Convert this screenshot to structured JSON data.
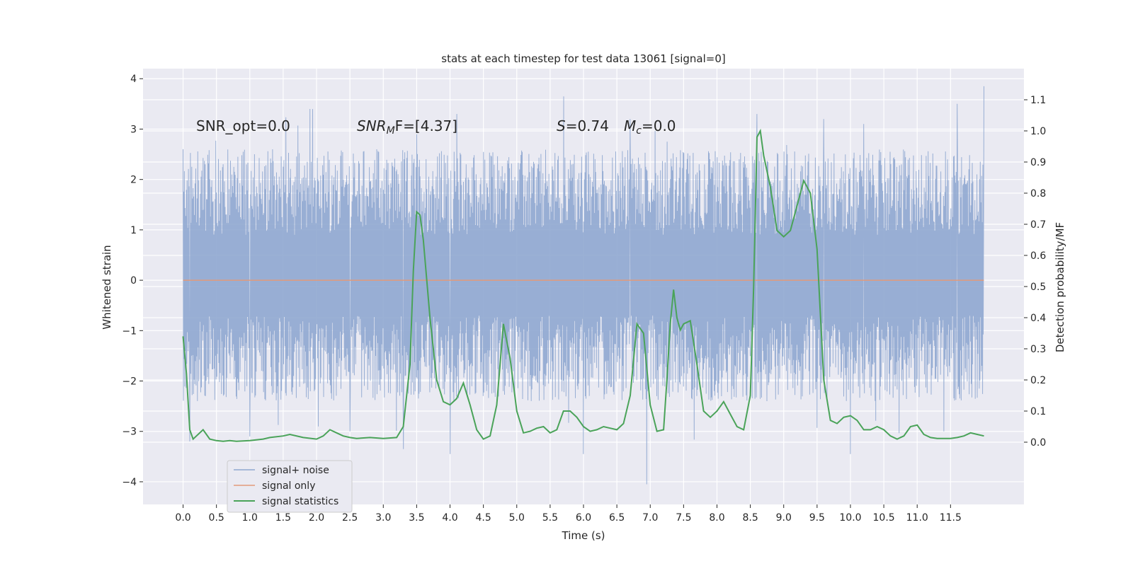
{
  "chart_data": {
    "type": "line",
    "title": "stats at each timestep for test data 13061 [signal=0]",
    "xlabel": "Time (s)",
    "ylabel": "Whitened strain",
    "y2label": "Detection probability/MF",
    "xlim": [
      -0.6,
      12.6
    ],
    "ylim": [
      -4.45,
      4.2
    ],
    "y2lim": [
      -0.2,
      1.2
    ],
    "x_ticks": [
      0.0,
      0.5,
      1.0,
      1.5,
      2.0,
      2.5,
      3.0,
      3.5,
      4.0,
      4.5,
      5.0,
      5.5,
      6.0,
      6.5,
      7.0,
      7.5,
      8.0,
      8.5,
      9.0,
      9.5,
      10.0,
      10.5,
      11.0,
      11.5
    ],
    "x_tick_labels": [
      "0.0",
      "0.5",
      "1.0",
      "1.5",
      "2.0",
      "2.5",
      "3.0",
      "3.5",
      "4.0",
      "4.5",
      "5.0",
      "5.5",
      "6.0",
      "6.5",
      "7.0",
      "7.5",
      "8.0",
      "8.5",
      "9.0",
      "9.5",
      "10.0",
      "10.5",
      "11.0",
      "11.5"
    ],
    "y_ticks": [
      -4,
      -3,
      -2,
      -1,
      0,
      1,
      2,
      3,
      4
    ],
    "y_tick_labels": [
      "−4",
      "−3",
      "−2",
      "−1",
      "0",
      "1",
      "2",
      "3",
      "4"
    ],
    "y2_ticks": [
      0.0,
      0.1,
      0.2,
      0.3,
      0.4,
      0.5,
      0.6,
      0.7,
      0.8,
      0.9,
      1.0,
      1.1
    ],
    "y2_tick_labels": [
      "0.0",
      "0.1",
      "0.2",
      "0.3",
      "0.4",
      "0.5",
      "0.6",
      "0.7",
      "0.8",
      "0.9",
      "1.0",
      "1.1"
    ],
    "grid": true,
    "legend_position": "lower-left",
    "annotations": {
      "snr_opt": "SNR_opt=0.0",
      "snr_mf_main": "SNR",
      "snr_mf_sub": "M",
      "snr_mf_rest": "F=[4.37]",
      "s_sym": "S",
      "s_val": "=0.74",
      "mc_sym": "M",
      "mc_sub": "c",
      "mc_val": "=0.0"
    },
    "series": [
      {
        "name": "signal+ noise",
        "color": "#8fa7d0",
        "axis": "left",
        "t_range": [
          0.0,
          12.0
        ],
        "typical_range": [
          -1.6,
          1.8
        ],
        "notable_peaks": [
          {
            "x": 0.0,
            "y": 2.6
          },
          {
            "x": 1.9,
            "y": 3.4
          },
          {
            "x": 3.5,
            "y": 2.9
          },
          {
            "x": 4.1,
            "y": 3.3
          },
          {
            "x": 5.7,
            "y": 3.65
          },
          {
            "x": 6.7,
            "y": 3.2
          },
          {
            "x": 8.6,
            "y": 3.3
          },
          {
            "x": 9.6,
            "y": 3.2
          },
          {
            "x": 10.2,
            "y": 3.1
          },
          {
            "x": 11.6,
            "y": 3.5
          },
          {
            "x": 12.0,
            "y": 3.85
          }
        ],
        "notable_troughs": [
          {
            "x": 0.1,
            "y": -3.2
          },
          {
            "x": 1.0,
            "y": -3.1
          },
          {
            "x": 2.5,
            "y": -3.0
          },
          {
            "x": 3.3,
            "y": -3.35
          },
          {
            "x": 4.0,
            "y": -3.45
          },
          {
            "x": 6.0,
            "y": -3.45
          },
          {
            "x": 6.95,
            "y": -4.05
          },
          {
            "x": 10.0,
            "y": -3.45
          },
          {
            "x": 11.4,
            "y": -3.0
          }
        ]
      },
      {
        "name": "signal only",
        "color": "#e29a7b",
        "axis": "left",
        "x": [
          0.0,
          12.0
        ],
        "values": [
          0.0,
          0.0
        ]
      },
      {
        "name": "signal statistics",
        "color": "#4aa359",
        "axis": "right",
        "x": [
          0.0,
          0.05,
          0.1,
          0.15,
          0.2,
          0.3,
          0.4,
          0.5,
          0.6,
          0.7,
          0.8,
          1.0,
          1.2,
          1.3,
          1.5,
          1.6,
          1.8,
          2.0,
          2.1,
          2.2,
          2.3,
          2.4,
          2.5,
          2.6,
          2.8,
          3.0,
          3.2,
          3.3,
          3.4,
          3.45,
          3.5,
          3.55,
          3.6,
          3.7,
          3.8,
          3.9,
          4.0,
          4.1,
          4.2,
          4.3,
          4.4,
          4.5,
          4.6,
          4.7,
          4.8,
          4.9,
          5.0,
          5.1,
          5.2,
          5.3,
          5.4,
          5.5,
          5.6,
          5.7,
          5.8,
          5.9,
          6.0,
          6.1,
          6.2,
          6.3,
          6.4,
          6.5,
          6.6,
          6.7,
          6.8,
          6.9,
          7.0,
          7.1,
          7.2,
          7.25,
          7.3,
          7.35,
          7.4,
          7.45,
          7.5,
          7.6,
          7.7,
          7.8,
          7.9,
          8.0,
          8.1,
          8.2,
          8.3,
          8.4,
          8.5,
          8.55,
          8.6,
          8.65,
          8.7,
          8.8,
          8.9,
          9.0,
          9.1,
          9.2,
          9.3,
          9.4,
          9.5,
          9.6,
          9.7,
          9.8,
          9.9,
          10.0,
          10.1,
          10.2,
          10.3,
          10.4,
          10.5,
          10.6,
          10.7,
          10.8,
          10.9,
          11.0,
          11.1,
          11.2,
          11.3,
          11.4,
          11.5,
          11.6,
          11.7,
          11.8,
          11.9,
          12.0
        ],
        "values": [
          0.34,
          0.22,
          0.04,
          0.01,
          0.02,
          0.04,
          0.01,
          0.005,
          0.003,
          0.005,
          0.003,
          0.005,
          0.01,
          0.015,
          0.02,
          0.025,
          0.015,
          0.01,
          0.02,
          0.04,
          0.03,
          0.02,
          0.015,
          0.012,
          0.015,
          0.012,
          0.015,
          0.05,
          0.25,
          0.55,
          0.74,
          0.73,
          0.65,
          0.4,
          0.2,
          0.13,
          0.12,
          0.14,
          0.19,
          0.12,
          0.04,
          0.01,
          0.02,
          0.12,
          0.38,
          0.27,
          0.1,
          0.03,
          0.035,
          0.045,
          0.05,
          0.03,
          0.04,
          0.1,
          0.1,
          0.08,
          0.05,
          0.035,
          0.04,
          0.05,
          0.045,
          0.04,
          0.06,
          0.15,
          0.38,
          0.35,
          0.12,
          0.035,
          0.04,
          0.2,
          0.38,
          0.49,
          0.4,
          0.36,
          0.38,
          0.39,
          0.25,
          0.1,
          0.08,
          0.1,
          0.13,
          0.09,
          0.05,
          0.04,
          0.15,
          0.5,
          0.98,
          1.0,
          0.92,
          0.82,
          0.68,
          0.66,
          0.68,
          0.76,
          0.84,
          0.8,
          0.62,
          0.2,
          0.07,
          0.06,
          0.08,
          0.085,
          0.07,
          0.04,
          0.04,
          0.05,
          0.04,
          0.02,
          0.01,
          0.02,
          0.05,
          0.055,
          0.025,
          0.015,
          0.012,
          0.012,
          0.012,
          0.015,
          0.02,
          0.03,
          0.025,
          0.02
        ]
      }
    ]
  }
}
